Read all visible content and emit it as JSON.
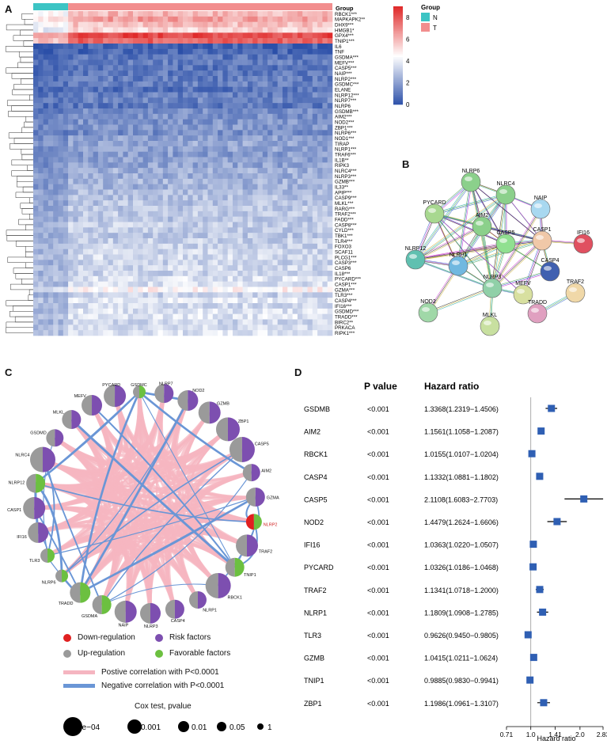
{
  "panels": {
    "a": "A",
    "b": "B",
    "c": "C",
    "d": "D"
  },
  "panel_a": {
    "group_header": "Group",
    "legend_title": "Group",
    "groups": [
      {
        "label": "N",
        "color": "#3cc4c4"
      },
      {
        "label": "T",
        "color": "#f28e8e"
      }
    ],
    "scale_ticks": [
      "8",
      "6",
      "4",
      "2",
      "0"
    ],
    "colors": {
      "low": "#2b4fa8",
      "mid": "#ffffff",
      "high": "#e02a2a"
    },
    "genes": [
      "RBCK1***",
      "MAPKAPK2**",
      "DHX9***",
      "HMGB1*",
      "GPX4***",
      "TNIP1***",
      "IL6",
      "TNF",
      "GSDMA***",
      "MEFV***",
      "CASP5***",
      "NAIP***",
      "NLRP2***",
      "GSDMC***",
      "ELANE",
      "NLRP12***",
      "NLRP7***",
      "NLRP6",
      "GSDMB***",
      "AIM2***",
      "NOD2***",
      "ZBP1***",
      "NLRP6***",
      "NOD1***",
      "TIRAP",
      "NLRP1***",
      "TRAF6***",
      "IL1B**",
      "RIPK3",
      "NLRC4***",
      "NLRP3***",
      "GZMB***",
      "IL33**",
      "APIP***",
      "CASP9***",
      "MLKL***",
      "RARG***",
      "TRAF2***",
      "FADD***",
      "CASP8***",
      "CYLD***",
      "TBK1***",
      "TLR4***",
      "FOXO3",
      "SCAF11",
      "PLCG1***",
      "CASP3***",
      "CASP6",
      "IL18***",
      "PYCARD***",
      "CASP1***",
      "GZMA***",
      "TLR3***",
      "CASP4***",
      "IFI16***",
      "GSDMD***",
      "TRADD***",
      "BIRC2**",
      "PRKACA",
      "RIPK1***"
    ],
    "expr_level": [
      6.0,
      6.6,
      5.8,
      5.4,
      8.4,
      7.8,
      0.5,
      0.6,
      1.0,
      1.2,
      1.0,
      1.1,
      1.2,
      1.3,
      0.9,
      1.3,
      1.4,
      1.1,
      1.6,
      1.7,
      1.8,
      1.9,
      1.6,
      2.1,
      2.3,
      2.2,
      2.0,
      2.1,
      2.2,
      2.5,
      2.4,
      2.6,
      2.5,
      2.8,
      2.9,
      3.0,
      3.1,
      3.2,
      3.0,
      3.3,
      3.2,
      3.1,
      3.3,
      3.4,
      3.5,
      3.6,
      3.4,
      3.5,
      3.4,
      3.8,
      3.7,
      4.6,
      3.3,
      3.9,
      3.6,
      3.8,
      3.9,
      3.5,
      3.7,
      3.8
    ]
  },
  "panel_b": {
    "nodes": [
      {
        "id": "NLRP6",
        "color": "#8bd08b"
      },
      {
        "id": "NLRC4",
        "color": "#8bd08b"
      },
      {
        "id": "NAIP",
        "color": "#a8d8f0"
      },
      {
        "id": "PYCARD",
        "color": "#a8d890"
      },
      {
        "id": "AIM2",
        "color": "#8bd08b"
      },
      {
        "id": "CASP1",
        "color": "#f0c8a8"
      },
      {
        "id": "IFI16",
        "color": "#e05060"
      },
      {
        "id": "CASP5",
        "color": "#90e090"
      },
      {
        "id": "NLRP12",
        "color": "#60c0b0"
      },
      {
        "id": "NLRP1",
        "color": "#70b8e0"
      },
      {
        "id": "CASP4",
        "color": "#4060b0"
      },
      {
        "id": "TRAF2",
        "color": "#f0d8a8"
      },
      {
        "id": "NLRP3",
        "color": "#90d0a8"
      },
      {
        "id": "MEFV",
        "color": "#d8e0a0"
      },
      {
        "id": "TRADD",
        "color": "#e0a0c0"
      },
      {
        "id": "NOD2",
        "color": "#a0d8a8"
      },
      {
        "id": "MLKL",
        "color": "#c8e0a0"
      }
    ]
  },
  "panel_c": {
    "nodes": [
      {
        "id": "GSDMC",
        "reg": "up",
        "factor": "favorable"
      },
      {
        "id": "NLRP7",
        "reg": "up",
        "factor": "risk"
      },
      {
        "id": "NOD2",
        "reg": "up",
        "factor": "risk"
      },
      {
        "id": "GZMB",
        "reg": "up",
        "factor": "risk"
      },
      {
        "id": "ZBP1",
        "reg": "up",
        "factor": "risk"
      },
      {
        "id": "CASP5",
        "reg": "up",
        "factor": "risk"
      },
      {
        "id": "AIM2",
        "reg": "up",
        "factor": "risk"
      },
      {
        "id": "GZMA",
        "reg": "up",
        "factor": "risk"
      },
      {
        "id": "NLRP2",
        "reg": "down",
        "factor": "favorable"
      },
      {
        "id": "TRAF2",
        "reg": "up",
        "factor": "risk"
      },
      {
        "id": "TNIP1",
        "reg": "up",
        "factor": "favorable"
      },
      {
        "id": "RBCK1",
        "reg": "up",
        "factor": "risk"
      },
      {
        "id": "NLRP1",
        "reg": "up",
        "factor": "risk"
      },
      {
        "id": "CASP4",
        "reg": "up",
        "factor": "risk"
      },
      {
        "id": "NLRP3",
        "reg": "up",
        "factor": "risk"
      },
      {
        "id": "NAIP",
        "reg": "up",
        "factor": "risk"
      },
      {
        "id": "GSDMA",
        "reg": "up",
        "factor": "favorable"
      },
      {
        "id": "TRADD",
        "reg": "up",
        "factor": "favorable"
      },
      {
        "id": "NLRP6",
        "reg": "up",
        "factor": "favorable"
      },
      {
        "id": "TLR3",
        "reg": "up",
        "factor": "favorable"
      },
      {
        "id": "IFI16",
        "reg": "up",
        "factor": "risk"
      },
      {
        "id": "CASP1",
        "reg": "up",
        "factor": "risk"
      },
      {
        "id": "NLRP12",
        "reg": "up",
        "factor": "favorable"
      },
      {
        "id": "NLRC4",
        "reg": "up",
        "factor": "risk"
      },
      {
        "id": "GSDMD",
        "reg": "up",
        "factor": "risk"
      },
      {
        "id": "MLKL",
        "reg": "up",
        "factor": "risk"
      },
      {
        "id": "MEFV",
        "reg": "up",
        "factor": "risk"
      },
      {
        "id": "PYCARD",
        "reg": "up",
        "factor": "risk"
      }
    ],
    "legend": {
      "down": "Down-regulation",
      "up": "Up-regulation",
      "risk": "Risk factors",
      "favorable": "Favorable factors",
      "positive": "Postive correlation with P<0.0001",
      "negative": "Negative correlation with P<0.0001",
      "cox_title": "Cox test, pvalue",
      "cox_levels": [
        "1e−04",
        "0.001",
        "0.01",
        "0.05",
        "1"
      ]
    },
    "colors": {
      "down": "#e02020",
      "up": "#9a9a9a",
      "risk": "#7d4fb0",
      "favorable": "#6cc040",
      "positive": "#f5b5c0",
      "negative": "#6a96d6"
    }
  },
  "chart_data": {
    "type": "forest",
    "col_pvalue": "P value",
    "col_hr": "Hazard ratio",
    "xlabel": "Hazard ratio",
    "x_ticks": [
      {
        "value": 0.71,
        "label": "0.71"
      },
      {
        "value": 1.0,
        "label": "1.0"
      },
      {
        "value": 1.41,
        "label": "1.41"
      },
      {
        "value": 2.0,
        "label": "2.0"
      },
      {
        "value": 2.83,
        "label": "2.83"
      }
    ],
    "xlim": [
      0.71,
      2.83
    ],
    "scale": "log2",
    "reference": 1.0,
    "rows": [
      {
        "gene": "GSDMB",
        "p": "<0.001",
        "hr": 1.3368,
        "lo": 1.2319,
        "hi": 1.4506,
        "text": "1.3368(1.2319−1.4506)"
      },
      {
        "gene": "AIM2",
        "p": "<0.001",
        "hr": 1.1561,
        "lo": 1.1058,
        "hi": 1.2087,
        "text": "1.1561(1.1058−1.2087)"
      },
      {
        "gene": "RBCK1",
        "p": "<0.001",
        "hr": 1.0155,
        "lo": 1.0107,
        "hi": 1.0204,
        "text": "1.0155(1.0107−1.0204)"
      },
      {
        "gene": "CASP4",
        "p": "<0.001",
        "hr": 1.1332,
        "lo": 1.0881,
        "hi": 1.1802,
        "text": "1.1332(1.0881−1.1802)"
      },
      {
        "gene": "CASP5",
        "p": "<0.001",
        "hr": 2.1108,
        "lo": 1.6083,
        "hi": 2.7703,
        "text": "2.1108(1.6083−2.7703)"
      },
      {
        "gene": "NOD2",
        "p": "<0.001",
        "hr": 1.4479,
        "lo": 1.2624,
        "hi": 1.6606,
        "text": "1.4479(1.2624−1.6606)"
      },
      {
        "gene": "IFI16",
        "p": "<0.001",
        "hr": 1.0363,
        "lo": 1.022,
        "hi": 1.0507,
        "text": "1.0363(1.0220−1.0507)"
      },
      {
        "gene": "PYCARD",
        "p": "<0.001",
        "hr": 1.0326,
        "lo": 1.0186,
        "hi": 1.0468,
        "text": "1.0326(1.0186−1.0468)"
      },
      {
        "gene": "TRAF2",
        "p": "<0.001",
        "hr": 1.1341,
        "lo": 1.0718,
        "hi": 1.2,
        "text": "1.1341(1.0718−1.2000)"
      },
      {
        "gene": "NLRP1",
        "p": "<0.001",
        "hr": 1.1809,
        "lo": 1.0908,
        "hi": 1.2785,
        "text": "1.1809(1.0908−1.2785)"
      },
      {
        "gene": "TLR3",
        "p": "<0.001",
        "hr": 0.9626,
        "lo": 0.945,
        "hi": 0.9805,
        "text": "0.9626(0.9450−0.9805)"
      },
      {
        "gene": "GZMB",
        "p": "<0.001",
        "hr": 1.0415,
        "lo": 1.0211,
        "hi": 1.0624,
        "text": "1.0415(1.0211−1.0624)"
      },
      {
        "gene": "TNIP1",
        "p": "<0.001",
        "hr": 0.9885,
        "lo": 0.983,
        "hi": 0.9941,
        "text": "0.9885(0.9830−0.9941)"
      },
      {
        "gene": "ZBP1",
        "p": "<0.001",
        "hr": 1.1986,
        "lo": 1.0961,
        "hi": 1.3107,
        "text": "1.1986(1.0961−1.3107)"
      }
    ],
    "box_color": "#2f5fb3"
  }
}
